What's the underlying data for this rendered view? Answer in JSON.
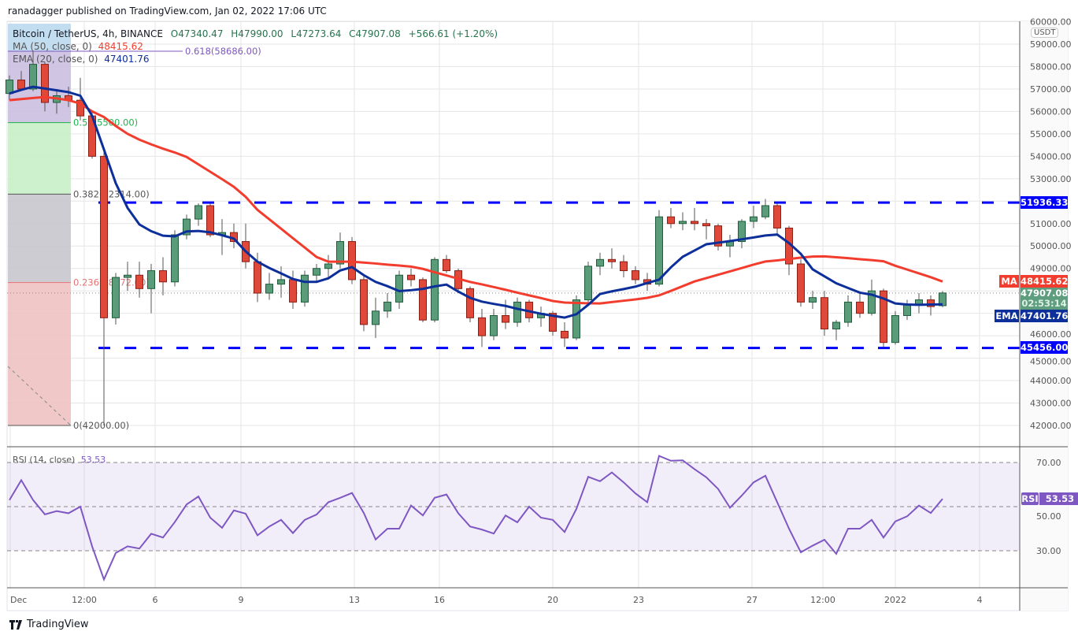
{
  "header": {
    "published": "ranadagger published on TradingView.com, Jan 02, 2022 17:06 UTC",
    "symbol": "Bitcoin / TetherUS, 4h, BINANCE",
    "open": "O47340.47",
    "high": "H47990.00",
    "low": "L47273.64",
    "close": "C47907.08",
    "change": "+566.61 (+1.20%)"
  },
  "legend": {
    "ma_label": "MA (50, close, 0)",
    "ma_value": "48415.62",
    "ema_label": "EMA (20, close, 0)",
    "ema_value": "47401.76",
    "rsi_label": "RSI (14, close)",
    "rsi_value": "53.53"
  },
  "axis": {
    "currency": "USDT",
    "price_ticks": [
      "60000.00",
      "59000.00",
      "58000.00",
      "57000.00",
      "56000.00",
      "55000.00",
      "54000.00",
      "53000.00",
      "51000.00",
      "50000.00",
      "49000.00",
      "46000.00",
      "45000.00",
      "44000.00",
      "43000.00",
      "42000.00"
    ],
    "rsi_ticks": [
      "70.00",
      "50.00",
      "30.00"
    ],
    "time_ticks": [
      "Dec",
      "12:00",
      "6",
      "9",
      "13",
      "16",
      "20",
      "23",
      "27",
      "12:00",
      "2022",
      "4"
    ]
  },
  "tags": {
    "ma": {
      "label": "MA",
      "value": "48415.62",
      "color": "#f23d2e"
    },
    "last": {
      "value": "47907.08",
      "countdown": "02:53:14",
      "color": "#5e9e7e"
    },
    "ema": {
      "label": "EMA",
      "value": "47401.76",
      "color": "#0c2f9a"
    },
    "res": {
      "value": "51936.33",
      "color": "#0000ff"
    },
    "sup": {
      "value": "45456.00",
      "color": "#0000ff"
    },
    "rsi": {
      "label": "RSI",
      "value": "53.53",
      "color": "#7e57c2"
    }
  },
  "footer": {
    "brand": "TradingView"
  },
  "colors": {
    "up": "#5a9c7a",
    "up_border": "#1f5c3b",
    "down": "#e0483a",
    "down_border": "#8a1f14",
    "ma": "#f23d2e",
    "ema": "#0c2f9a",
    "hline": "#0000ff",
    "rsi": "#7e57c2"
  },
  "chart_data": {
    "type": "candlestick",
    "symbol": "Bitcoin / TetherUS, 4h, BINANCE",
    "ylim": [
      42000,
      60000
    ],
    "rsi_ylim": [
      10,
      80
    ],
    "horizontal_levels": [
      51936.33,
      45456.0
    ],
    "fib_levels": [
      {
        "label": "0.618(58686.00)",
        "price": 58686,
        "color": "#7e57c2"
      },
      {
        "label": "0.5(55500.00)",
        "price": 55500,
        "color": "#22b14c"
      },
      {
        "label": "0.382(52314.00)",
        "price": 52314,
        "color": "#555555"
      },
      {
        "label": "0.236(48372.00)",
        "price": 48372,
        "color": "#e57373"
      },
      {
        "label": "0(42000.00)",
        "price": 42000,
        "color": "#555555"
      }
    ],
    "candles_ohlc": [
      [
        56800,
        57600,
        56500,
        57400
      ],
      [
        57400,
        57800,
        56900,
        57000
      ],
      [
        57000,
        58700,
        56900,
        58100
      ],
      [
        58100,
        58200,
        56000,
        56400
      ],
      [
        56400,
        57000,
        55900,
        56700
      ],
      [
        56700,
        57100,
        56200,
        56500
      ],
      [
        56500,
        57500,
        55600,
        55800
      ],
      [
        55800,
        56000,
        53900,
        54000
      ],
      [
        54000,
        54200,
        42000,
        46800
      ],
      [
        46800,
        48800,
        46500,
        48600
      ],
      [
        48600,
        49300,
        48000,
        48700
      ],
      [
        48700,
        49300,
        47700,
        48100
      ],
      [
        48100,
        49200,
        47000,
        48900
      ],
      [
        48900,
        49500,
        47800,
        48400
      ],
      [
        48400,
        50700,
        48200,
        50500
      ],
      [
        50500,
        51400,
        50300,
        51200
      ],
      [
        51200,
        51900,
        50900,
        51800
      ],
      [
        51800,
        51900,
        50400,
        50500
      ],
      [
        50500,
        51200,
        49600,
        50600
      ],
      [
        50600,
        51000,
        49900,
        50200
      ],
      [
        50200,
        51000,
        49000,
        49300
      ],
      [
        49300,
        49700,
        47500,
        47900
      ],
      [
        47900,
        48800,
        47600,
        48300
      ],
      [
        48300,
        49100,
        47700,
        48500
      ],
      [
        48500,
        48900,
        47200,
        47500
      ],
      [
        47500,
        48900,
        47300,
        48700
      ],
      [
        48700,
        49200,
        48400,
        49000
      ],
      [
        49000,
        49600,
        48600,
        49200
      ],
      [
        49200,
        50600,
        49000,
        50200
      ],
      [
        50200,
        50400,
        48300,
        48500
      ],
      [
        48500,
        48700,
        46200,
        46500
      ],
      [
        46500,
        47700,
        45900,
        47100
      ],
      [
        47100,
        47900,
        46800,
        47500
      ],
      [
        47500,
        48900,
        47200,
        48700
      ],
      [
        48700,
        49000,
        48200,
        48500
      ],
      [
        48500,
        48600,
        46600,
        46700
      ],
      [
        46700,
        49500,
        46600,
        49400
      ],
      [
        49400,
        49600,
        48800,
        48900
      ],
      [
        48900,
        49000,
        47900,
        48100
      ],
      [
        48100,
        48200,
        46600,
        46800
      ],
      [
        46800,
        47200,
        45500,
        46000
      ],
      [
        46000,
        47200,
        45800,
        46900
      ],
      [
        46900,
        47600,
        46300,
        46600
      ],
      [
        46600,
        47700,
        46400,
        47500
      ],
      [
        47500,
        47600,
        46600,
        46800
      ],
      [
        46800,
        47300,
        46400,
        47000
      ],
      [
        47000,
        47100,
        46000,
        46200
      ],
      [
        46200,
        46600,
        45500,
        45900
      ],
      [
        45900,
        47800,
        45800,
        47600
      ],
      [
        47600,
        49300,
        47500,
        49100
      ],
      [
        49100,
        49700,
        48700,
        49400
      ],
      [
        49400,
        49900,
        49000,
        49300
      ],
      [
        49300,
        49600,
        48600,
        48900
      ],
      [
        48900,
        49100,
        48300,
        48500
      ],
      [
        48500,
        48800,
        48000,
        48300
      ],
      [
        48300,
        51600,
        48200,
        51300
      ],
      [
        51300,
        51700,
        50800,
        51000
      ],
      [
        51000,
        51500,
        50700,
        51100
      ],
      [
        51100,
        51700,
        50700,
        51000
      ],
      [
        51000,
        51200,
        50300,
        50900
      ],
      [
        50900,
        51000,
        49800,
        50000
      ],
      [
        50000,
        50500,
        49500,
        50200
      ],
      [
        50200,
        51200,
        49900,
        51100
      ],
      [
        51100,
        51800,
        50800,
        51300
      ],
      [
        51300,
        52100,
        51200,
        51800
      ],
      [
        51800,
        51900,
        50500,
        50800
      ],
      [
        50800,
        50900,
        48700,
        49200
      ],
      [
        49200,
        49400,
        47300,
        47500
      ],
      [
        47500,
        48000,
        47200,
        47700
      ],
      [
        47700,
        48000,
        46000,
        46300
      ],
      [
        46300,
        46700,
        45800,
        46600
      ],
      [
        46600,
        47800,
        46400,
        47500
      ],
      [
        47500,
        47900,
        46800,
        47000
      ],
      [
        47000,
        48500,
        46900,
        48000
      ],
      [
        48000,
        48100,
        45500,
        45700
      ],
      [
        45700,
        47100,
        45600,
        46900
      ],
      [
        46900,
        47600,
        46700,
        47400
      ],
      [
        47400,
        47900,
        47000,
        47600
      ],
      [
        47600,
        47800,
        46900,
        47300
      ],
      [
        47340.47,
        47990,
        47273.64,
        47907.08
      ]
    ],
    "ema20": [
      56800,
      56960,
      57100,
      57020,
      56940,
      56860,
      56700,
      55800,
      54300,
      52800,
      51700,
      50960,
      50660,
      50460,
      50430,
      50650,
      50670,
      50610,
      50480,
      50330,
      49760,
      49300,
      49020,
      48780,
      48530,
      48400,
      48400,
      48560,
      48910,
      49060,
      48700,
      48400,
      48210,
      47990,
      48030,
      48090,
      48200,
      48280,
      47970,
      47690,
      47520,
      47420,
      47330,
      47200,
      47090,
      46980,
      46890,
      46810,
      46960,
      47380,
      47860,
      47980,
      48080,
      48190,
      48350,
      48500,
      49050,
      49520,
      49800,
      50080,
      50150,
      50220,
      50300,
      50380,
      50470,
      50510,
      50130,
      49650,
      48960,
      48650,
      48340,
      48130,
      47920,
      47830,
      47660,
      47440,
      47390,
      47380,
      47390,
      47401.76
    ],
    "ma50": [
      56500,
      56550,
      56600,
      56640,
      56580,
      56500,
      56350,
      56000,
      55750,
      55350,
      55000,
      54740,
      54530,
      54340,
      54170,
      53970,
      53640,
      53310,
      52980,
      52640,
      52190,
      51610,
      51190,
      50770,
      50350,
      49930,
      49510,
      49300,
      49300,
      49300,
      49260,
      49220,
      49170,
      49130,
      49080,
      48980,
      48830,
      48690,
      48540,
      48400,
      48290,
      48170,
      48050,
      47920,
      47800,
      47680,
      47550,
      47480,
      47460,
      47450,
      47440,
      47500,
      47560,
      47620,
      47690,
      47800,
      48000,
      48210,
      48420,
      48570,
      48720,
      48870,
      49020,
      49170,
      49310,
      49360,
      49420,
      49480,
      49530,
      49540,
      49500,
      49460,
      49410,
      49370,
      49320,
      49120,
      48950,
      48780,
      48610,
      48415.62
    ],
    "rsi14": [
      53,
      62,
      53,
      46.5,
      48,
      47,
      50,
      32,
      17,
      29,
      32,
      31,
      37.7,
      36,
      43,
      51,
      54.6,
      45,
      40.4,
      48.3,
      46.8,
      37,
      41,
      44,
      38,
      44,
      46.4,
      52,
      54,
      56.2,
      47.1,
      35.1,
      40,
      40,
      50.5,
      46,
      54,
      55.5,
      47,
      41,
      39.6,
      37.8,
      46,
      42.9,
      50,
      45,
      44,
      38.5,
      49,
      63.5,
      61.5,
      65.5,
      61,
      56,
      52,
      73,
      70.8,
      71,
      67,
      63.3,
      58,
      49.5,
      55,
      61,
      64,
      52,
      40,
      29.3,
      32.3,
      35,
      28.6,
      40,
      40,
      44,
      36,
      43.3,
      45.6,
      50.5,
      47.1,
      53.53
    ]
  }
}
